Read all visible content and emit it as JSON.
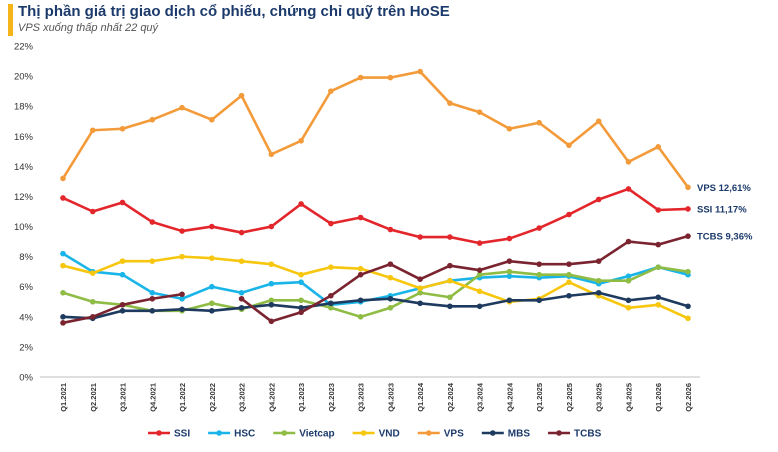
{
  "header": {
    "title": "Thị phần giá trị giao dịch cổ phiếu, chứng chỉ quỹ trên HoSE",
    "subtitle": "VPS xuống thấp nhất 22 quý"
  },
  "chart_data": {
    "type": "line",
    "title": "Thị phần giá trị giao dịch cổ phiếu, chứng chỉ quỹ trên HoSE",
    "subtitle": "VPS xuống thấp nhất 22 quý",
    "ylim": [
      0,
      22
    ],
    "yticks": [
      "0%",
      "2%",
      "4%",
      "6%",
      "8%",
      "10%",
      "12%",
      "14%",
      "16%",
      "18%",
      "20%",
      "22%"
    ],
    "grid": false,
    "legend": "bottom",
    "categories": [
      "Q1.2021",
      "Q2.2021",
      "Q3.2021",
      "Q4.2021",
      "Q1.2022",
      "Q2.2022",
      "Q3.2022",
      "Q4.2022",
      "Q1.2023",
      "Q2.2023",
      "Q3.2023",
      "Q4.2023",
      "Q1.2024",
      "Q2.2024",
      "Q3.2024",
      "Q4.2024",
      "Q1.2025",
      "Q2.2025",
      "Q3.2025",
      "Q4.2025",
      "Q1.2026",
      "Q2.2026"
    ],
    "series": [
      {
        "name": "SSI",
        "color": "#e3262b",
        "values": [
          11.9,
          11.0,
          11.6,
          10.3,
          9.7,
          10.0,
          9.6,
          10.0,
          11.5,
          10.2,
          10.6,
          9.8,
          9.3,
          9.3,
          8.9,
          9.2,
          9.9,
          10.8,
          11.8,
          12.5,
          11.1,
          11.17
        ]
      },
      {
        "name": "HSC",
        "color": "#19b5e8",
        "values": [
          8.2,
          7.0,
          6.8,
          5.6,
          5.2,
          6.0,
          5.6,
          6.2,
          6.3,
          4.8,
          5.0,
          5.4,
          5.9,
          6.4,
          6.6,
          6.7,
          6.6,
          6.7,
          6.2,
          6.7,
          7.3,
          6.8
        ]
      },
      {
        "name": "Vietcap",
        "color": "#8fbc45",
        "values": [
          5.6,
          5.0,
          4.8,
          4.4,
          4.4,
          4.9,
          4.5,
          5.1,
          5.1,
          4.6,
          4.0,
          4.6,
          5.6,
          5.3,
          6.8,
          7.0,
          6.8,
          6.8,
          6.4,
          6.4,
          7.3,
          7.0
        ]
      },
      {
        "name": "VND",
        "color": "#f7c60e",
        "values": [
          7.4,
          6.9,
          7.7,
          7.7,
          8.0,
          7.9,
          7.7,
          7.5,
          6.8,
          7.3,
          7.2,
          6.6,
          5.9,
          6.4,
          5.7,
          5.0,
          5.2,
          6.3,
          5.4,
          4.6,
          4.8,
          3.9
        ]
      },
      {
        "name": "VPS",
        "color": "#f39b3a",
        "values": [
          13.2,
          16.4,
          16.5,
          17.1,
          17.9,
          17.1,
          18.7,
          14.8,
          15.7,
          19.0,
          19.9,
          19.9,
          20.3,
          18.2,
          17.6,
          16.5,
          16.9,
          15.4,
          17.0,
          14.3,
          15.3,
          12.61
        ]
      },
      {
        "name": "MBS",
        "color": "#1e3a5f",
        "values": [
          4.0,
          3.9,
          4.4,
          4.4,
          4.5,
          4.4,
          4.6,
          4.8,
          4.6,
          4.9,
          5.1,
          5.2,
          4.9,
          4.7,
          4.7,
          5.1,
          5.1,
          5.4,
          5.6,
          5.1,
          5.3,
          4.7
        ]
      },
      {
        "name": "TCBS",
        "color": "#7a2430",
        "values": [
          3.6,
          4.0,
          4.8,
          5.2,
          5.5,
          null,
          5.2,
          3.7,
          4.3,
          5.4,
          6.8,
          7.5,
          6.5,
          7.4,
          7.1,
          7.7,
          7.5,
          7.5,
          7.7,
          9.0,
          8.8,
          9.36
        ]
      }
    ],
    "annotations": [
      "VPS 12,61%",
      "SSI 11,17%",
      "TCBS 9,36%"
    ]
  }
}
